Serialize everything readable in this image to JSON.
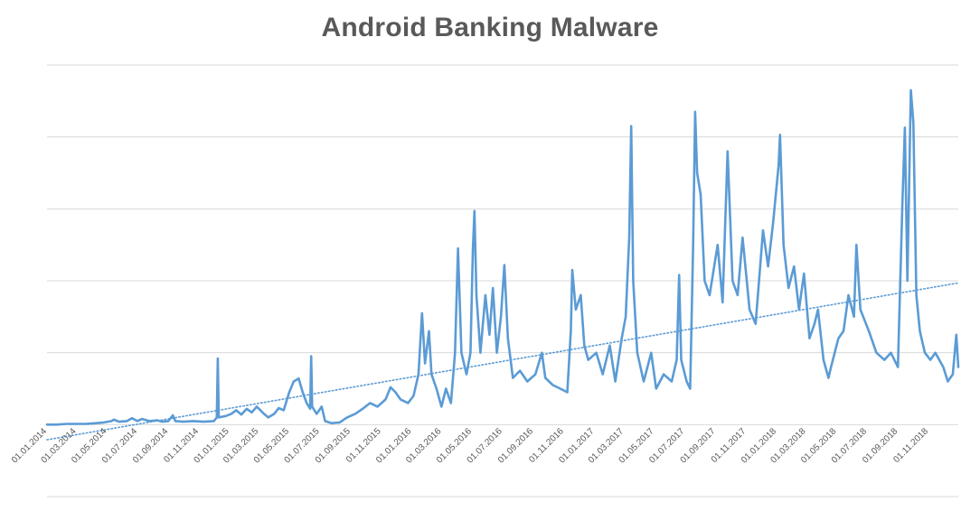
{
  "chart_data": {
    "type": "line",
    "title": "Android Banking Malware",
    "xlabel": "",
    "ylabel": "",
    "x_tick_labels": [
      "01.01.2014",
      "01.03.2014",
      "01.05.2014",
      "01.07.2014",
      "01.09.2014",
      "01.11.2014",
      "01.01.2015",
      "01.03.2015",
      "01.05.2015",
      "01.07.2015",
      "01.09.2015",
      "01.11.2015",
      "01.01.2016",
      "01.03.2016",
      "01.05.2016",
      "01.07.2016",
      "01.09.2016",
      "01.11.2016",
      "01.01.2017",
      "01.03.2017",
      "01.05.2017",
      "01.07.2017",
      "01.09.2017",
      "01.11.2017",
      "01.01.2018",
      "01.03.2018",
      "01.05.2018",
      "01.07.2018",
      "01.09.2018",
      "01.11.2018"
    ],
    "xlim": [
      "2014-01-01",
      "2018-12-31"
    ],
    "ylim": [
      -1,
      5
    ],
    "y_gridlines": [
      -1,
      0,
      1,
      2,
      3,
      4,
      5
    ],
    "y_tick_labels_shown": false,
    "grid": true,
    "legend": "none",
    "colors": {
      "series": "#5b9bd5",
      "trend": "#5b9bd5",
      "grid": "#d9d9d9",
      "title": "#595959",
      "tick_label": "#595959"
    },
    "series": [
      {
        "style": "solid",
        "points": [
          [
            "2014-01-01",
            0.0
          ],
          [
            "2014-01-20",
            0.0
          ],
          [
            "2014-02-10",
            0.01
          ],
          [
            "2014-03-01",
            0.01
          ],
          [
            "2014-03-20",
            0.01
          ],
          [
            "2014-04-10",
            0.02
          ],
          [
            "2014-04-25",
            0.03
          ],
          [
            "2014-05-10",
            0.05
          ],
          [
            "2014-05-15",
            0.07
          ],
          [
            "2014-05-25",
            0.04
          ],
          [
            "2014-06-10",
            0.05
          ],
          [
            "2014-06-20",
            0.09
          ],
          [
            "2014-07-01",
            0.05
          ],
          [
            "2014-07-10",
            0.08
          ],
          [
            "2014-07-25",
            0.05
          ],
          [
            "2014-08-10",
            0.06
          ],
          [
            "2014-08-20",
            0.04
          ],
          [
            "2014-09-01",
            0.05
          ],
          [
            "2014-09-10",
            0.13
          ],
          [
            "2014-09-15",
            0.05
          ],
          [
            "2014-10-01",
            0.04
          ],
          [
            "2014-10-20",
            0.05
          ],
          [
            "2014-11-10",
            0.04
          ],
          [
            "2014-12-01",
            0.05
          ],
          [
            "2014-12-07",
            0.1
          ],
          [
            "2014-12-09",
            0.92
          ],
          [
            "2014-12-11",
            0.1
          ],
          [
            "2014-12-25",
            0.12
          ],
          [
            "2015-01-05",
            0.15
          ],
          [
            "2015-01-15",
            0.2
          ],
          [
            "2015-01-25",
            0.14
          ],
          [
            "2015-02-05",
            0.22
          ],
          [
            "2015-02-15",
            0.17
          ],
          [
            "2015-02-25",
            0.25
          ],
          [
            "2015-03-10",
            0.16
          ],
          [
            "2015-03-20",
            0.1
          ],
          [
            "2015-04-01",
            0.15
          ],
          [
            "2015-04-10",
            0.23
          ],
          [
            "2015-04-20",
            0.2
          ],
          [
            "2015-05-01",
            0.45
          ],
          [
            "2015-05-10",
            0.6
          ],
          [
            "2015-05-20",
            0.64
          ],
          [
            "2015-05-28",
            0.45
          ],
          [
            "2015-06-05",
            0.3
          ],
          [
            "2015-06-12",
            0.22
          ],
          [
            "2015-06-14",
            0.95
          ],
          [
            "2015-06-16",
            0.25
          ],
          [
            "2015-06-25",
            0.15
          ],
          [
            "2015-07-05",
            0.25
          ],
          [
            "2015-07-12",
            0.05
          ],
          [
            "2015-07-25",
            0.02
          ],
          [
            "2015-08-10",
            0.03
          ],
          [
            "2015-08-25",
            0.1
          ],
          [
            "2015-09-10",
            0.15
          ],
          [
            "2015-09-25",
            0.22
          ],
          [
            "2015-10-10",
            0.3
          ],
          [
            "2015-10-25",
            0.25
          ],
          [
            "2015-11-10",
            0.35
          ],
          [
            "2015-11-20",
            0.52
          ],
          [
            "2015-11-30",
            0.45
          ],
          [
            "2015-12-10",
            0.35
          ],
          [
            "2015-12-25",
            0.3
          ],
          [
            "2016-01-05",
            0.4
          ],
          [
            "2016-01-15",
            0.7
          ],
          [
            "2016-01-22",
            1.55
          ],
          [
            "2016-01-28",
            0.85
          ],
          [
            "2016-02-05",
            1.3
          ],
          [
            "2016-02-10",
            0.7
          ],
          [
            "2016-02-20",
            0.5
          ],
          [
            "2016-03-01",
            0.25
          ],
          [
            "2016-03-10",
            0.5
          ],
          [
            "2016-03-20",
            0.3
          ],
          [
            "2016-03-28",
            1.0
          ],
          [
            "2016-04-03",
            2.45
          ],
          [
            "2016-04-10",
            1.0
          ],
          [
            "2016-04-20",
            0.7
          ],
          [
            "2016-04-28",
            1.0
          ],
          [
            "2016-05-03",
            2.45
          ],
          [
            "2016-05-06",
            2.97
          ],
          [
            "2016-05-10",
            1.8
          ],
          [
            "2016-05-18",
            1.0
          ],
          [
            "2016-05-28",
            1.8
          ],
          [
            "2016-06-05",
            1.25
          ],
          [
            "2016-06-12",
            1.9
          ],
          [
            "2016-06-20",
            1.0
          ],
          [
            "2016-06-28",
            1.5
          ],
          [
            "2016-07-05",
            2.22
          ],
          [
            "2016-07-12",
            1.2
          ],
          [
            "2016-07-22",
            0.65
          ],
          [
            "2016-08-05",
            0.75
          ],
          [
            "2016-08-20",
            0.6
          ],
          [
            "2016-09-05",
            0.7
          ],
          [
            "2016-09-18",
            1.0
          ],
          [
            "2016-09-25",
            0.65
          ],
          [
            "2016-10-10",
            0.55
          ],
          [
            "2016-10-25",
            0.5
          ],
          [
            "2016-11-08",
            0.45
          ],
          [
            "2016-11-15",
            1.3
          ],
          [
            "2016-11-18",
            2.15
          ],
          [
            "2016-11-25",
            1.6
          ],
          [
            "2016-12-05",
            1.8
          ],
          [
            "2016-12-12",
            1.1
          ],
          [
            "2016-12-20",
            0.9
          ],
          [
            "2017-01-05",
            1.0
          ],
          [
            "2017-01-18",
            0.7
          ],
          [
            "2017-02-01",
            1.1
          ],
          [
            "2017-02-12",
            0.6
          ],
          [
            "2017-02-25",
            1.2
          ],
          [
            "2017-03-05",
            1.5
          ],
          [
            "2017-03-12",
            2.6
          ],
          [
            "2017-03-16",
            4.15
          ],
          [
            "2017-03-20",
            2.0
          ],
          [
            "2017-03-28",
            1.0
          ],
          [
            "2017-04-10",
            0.6
          ],
          [
            "2017-04-25",
            1.0
          ],
          [
            "2017-05-05",
            0.5
          ],
          [
            "2017-05-20",
            0.7
          ],
          [
            "2017-06-05",
            0.6
          ],
          [
            "2017-06-15",
            0.9
          ],
          [
            "2017-06-20",
            2.08
          ],
          [
            "2017-06-24",
            0.9
          ],
          [
            "2017-07-05",
            0.6
          ],
          [
            "2017-07-12",
            0.5
          ],
          [
            "2017-07-18",
            2.5
          ],
          [
            "2017-07-22",
            4.35
          ],
          [
            "2017-07-26",
            3.5
          ],
          [
            "2017-08-02",
            3.2
          ],
          [
            "2017-08-10",
            2.0
          ],
          [
            "2017-08-20",
            1.8
          ],
          [
            "2017-09-05",
            2.5
          ],
          [
            "2017-09-15",
            1.7
          ],
          [
            "2017-09-25",
            3.8
          ],
          [
            "2017-10-05",
            2.0
          ],
          [
            "2017-10-15",
            1.8
          ],
          [
            "2017-10-25",
            2.6
          ],
          [
            "2017-11-08",
            1.6
          ],
          [
            "2017-11-20",
            1.4
          ],
          [
            "2017-12-05",
            2.7
          ],
          [
            "2017-12-15",
            2.2
          ],
          [
            "2017-12-25",
            2.8
          ],
          [
            "2018-01-05",
            3.6
          ],
          [
            "2018-01-08",
            4.03
          ],
          [
            "2018-01-15",
            2.5
          ],
          [
            "2018-01-25",
            1.9
          ],
          [
            "2018-02-05",
            2.2
          ],
          [
            "2018-02-15",
            1.6
          ],
          [
            "2018-02-25",
            2.1
          ],
          [
            "2018-03-08",
            1.2
          ],
          [
            "2018-03-18",
            1.4
          ],
          [
            "2018-03-25",
            1.6
          ],
          [
            "2018-04-05",
            0.9
          ],
          [
            "2018-04-15",
            0.65
          ],
          [
            "2018-04-20",
            0.8
          ],
          [
            "2018-05-05",
            1.2
          ],
          [
            "2018-05-15",
            1.3
          ],
          [
            "2018-05-25",
            1.8
          ],
          [
            "2018-06-05",
            1.5
          ],
          [
            "2018-06-10",
            2.5
          ],
          [
            "2018-06-18",
            1.6
          ],
          [
            "2018-07-05",
            1.3
          ],
          [
            "2018-07-20",
            1.0
          ],
          [
            "2018-08-05",
            0.9
          ],
          [
            "2018-08-18",
            1.0
          ],
          [
            "2018-09-01",
            0.8
          ],
          [
            "2018-09-10",
            3.05
          ],
          [
            "2018-09-15",
            4.13
          ],
          [
            "2018-09-20",
            2.0
          ],
          [
            "2018-09-27",
            4.65
          ],
          [
            "2018-10-02",
            4.2
          ],
          [
            "2018-10-08",
            1.8
          ],
          [
            "2018-10-15",
            1.3
          ],
          [
            "2018-10-25",
            1.0
          ],
          [
            "2018-11-05",
            0.9
          ],
          [
            "2018-11-15",
            1.0
          ],
          [
            "2018-12-01",
            0.8
          ],
          [
            "2018-12-10",
            0.6
          ],
          [
            "2018-12-20",
            0.7
          ],
          [
            "2018-12-27",
            1.25
          ],
          [
            "2018-12-31",
            0.8
          ]
        ]
      },
      {
        "style": "dotted",
        "trendline": "linear",
        "points": [
          [
            "2014-01-01",
            -0.21
          ],
          [
            "2018-12-31",
            1.97
          ]
        ]
      }
    ]
  }
}
